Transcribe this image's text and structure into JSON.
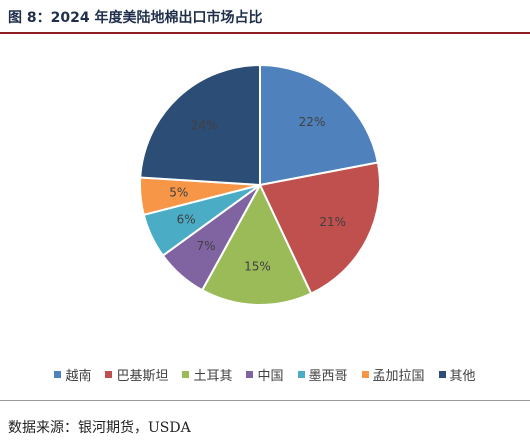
{
  "title": "图 8：2024 年度美陆地棉出口市场占比",
  "source": "数据来源：银河期货，USDA",
  "chart_data": {
    "type": "pie",
    "title": "",
    "slices": [
      {
        "name": "越南",
        "value": 22,
        "label": "22%",
        "color": "#4f81bd"
      },
      {
        "name": "巴基斯坦",
        "value": 21,
        "label": "21%",
        "color": "#c0504d"
      },
      {
        "name": "土耳其",
        "value": 15,
        "label": "15%",
        "color": "#9bbb59"
      },
      {
        "name": "中国",
        "value": 7,
        "label": "7%",
        "color": "#8064a2"
      },
      {
        "name": "墨西哥",
        "value": 6,
        "label": "6%",
        "color": "#4bacc6"
      },
      {
        "name": "孟加拉国",
        "value": 5,
        "label": "5%",
        "color": "#f79646"
      },
      {
        "name": "其他",
        "value": 24,
        "label": "24%",
        "color": "#2c4d75"
      }
    ],
    "start_direction": "12 o'clock",
    "direction": "clockwise",
    "legend": "bottom",
    "legend_entries": [
      "越南",
      "巴基斯坦",
      "土耳其",
      "中国",
      "墨西哥",
      "孟加拉国",
      "其他"
    ]
  }
}
